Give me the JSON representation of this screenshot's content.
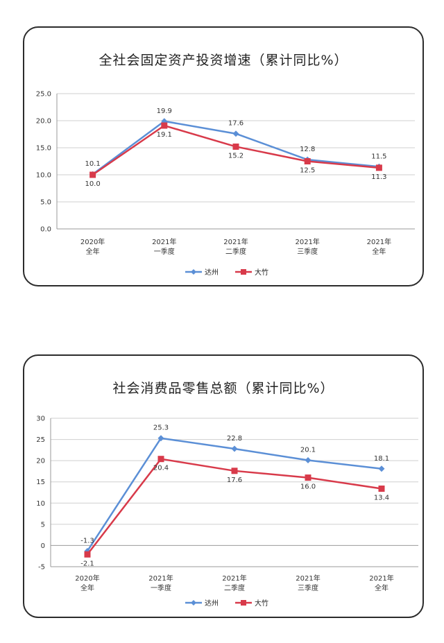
{
  "colors": {
    "s0": "#5b8fd6",
    "s1": "#d83a4a"
  },
  "chart_data": [
    {
      "type": "line",
      "title": "全社会固定资产投资增速（累计同比%）",
      "categories": [
        [
          "2020年",
          "全年"
        ],
        [
          "2021年",
          "一季度"
        ],
        [
          "2021年",
          "二季度"
        ],
        [
          "2021年",
          "三季度"
        ],
        [
          "2021年",
          "全年"
        ]
      ],
      "ylim": [
        0,
        25
      ],
      "yticks": [
        "0.0",
        "5.0",
        "10.0",
        "15.0",
        "20.0",
        "25.0"
      ],
      "grid": true,
      "legend": "bottom",
      "series": [
        {
          "name": "达州",
          "values": [
            10.1,
            19.9,
            17.6,
            12.8,
            11.5
          ],
          "labels": [
            "10.1",
            "19.9",
            "17.6",
            "12.8",
            "11.5"
          ]
        },
        {
          "name": "大竹",
          "values": [
            10.0,
            19.1,
            15.2,
            12.5,
            11.3
          ],
          "labels": [
            "10.0",
            "19.1",
            "15.2",
            "12.5",
            "11.3"
          ]
        }
      ]
    },
    {
      "type": "line",
      "title": "社会消费品零售总额（累计同比%）",
      "categories": [
        [
          "2020年",
          "全年"
        ],
        [
          "2021年",
          "一季度"
        ],
        [
          "2021年",
          "二季度"
        ],
        [
          "2021年",
          "三季度"
        ],
        [
          "2021年",
          "全年"
        ]
      ],
      "ylim": [
        -5,
        30
      ],
      "yticks": [
        "-5",
        "0",
        "5",
        "10",
        "15",
        "20",
        "25",
        "30"
      ],
      "grid": true,
      "legend": "bottom",
      "series": [
        {
          "name": "达州",
          "values": [
            -1.3,
            25.3,
            22.8,
            20.1,
            18.1
          ],
          "labels": [
            "-1.3",
            "25.3",
            "22.8",
            "20.1",
            "18.1"
          ]
        },
        {
          "name": "大竹",
          "values": [
            -2.1,
            20.4,
            17.6,
            16.0,
            13.4
          ],
          "labels": [
            "-2.1",
            "20.4",
            "17.6",
            "16.0",
            "13.4"
          ]
        }
      ]
    }
  ]
}
